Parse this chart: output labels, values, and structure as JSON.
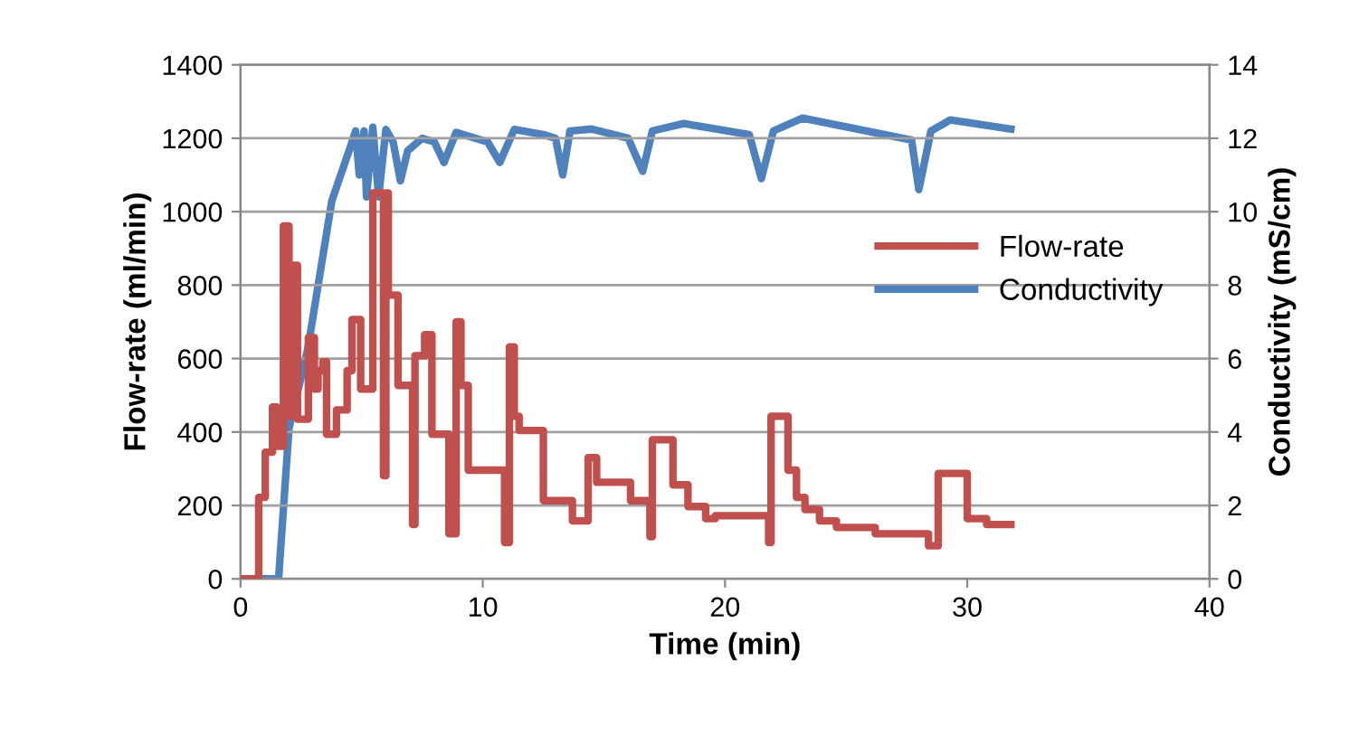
{
  "chart_data": {
    "type": "line",
    "xlabel": "Time (min)",
    "ylabel": "Flow-rate (ml/min)",
    "y2label": "Conductivity (mS/cm)",
    "xlim": [
      0,
      40
    ],
    "xticks": [
      0,
      10,
      20,
      30,
      40
    ],
    "ylim": [
      0,
      1400
    ],
    "yticks": [
      0,
      200,
      400,
      600,
      800,
      1000,
      1200,
      1400
    ],
    "y2lim": [
      0,
      14
    ],
    "y2ticks": [
      0,
      2,
      4,
      6,
      8,
      10,
      12,
      14
    ],
    "grid": "y",
    "legend": "right",
    "marker": "none",
    "line_style": "solid",
    "series": [
      {
        "name": "Flow-rate",
        "color": "#c0504d",
        "type": "step",
        "x": [
          0,
          0.75,
          1.02,
          1.32,
          1.5,
          1.77,
          2.0,
          2.1,
          2.35,
          2.8,
          3.05,
          3.2,
          3.4,
          3.55,
          3.96,
          4.4,
          4.6,
          4.96,
          5.46,
          5.9,
          6.0,
          6.1,
          6.5,
          7.1,
          7.2,
          7.6,
          7.9,
          8.6,
          8.9,
          9.1,
          9.4,
          10.9,
          11.1,
          11.3,
          11.5,
          12.5,
          13.7,
          14.35,
          14.7,
          16.1,
          16.9,
          17.0,
          17.85,
          18.47,
          19.2,
          19.6,
          21.8,
          21.9,
          22.6,
          22.95,
          23.3,
          23.9,
          24.6,
          26.2,
          28.4,
          28.8,
          30.0,
          30.8,
          31.8
        ],
        "values": [
          0,
          222,
          345,
          468,
          361,
          961,
          443,
          854,
          435,
          657,
          517,
          567,
          591,
          394,
          460,
          567,
          706,
          517,
          1051,
          281,
          1051,
          773,
          527,
          148,
          608,
          665,
          394,
          123,
          700,
          527,
          296,
          99,
          632,
          443,
          404,
          213,
          158,
          330,
          263,
          213,
          115,
          379,
          256,
          197,
          164,
          172,
          99,
          443,
          296,
          222,
          189,
          158,
          140,
          123,
          90,
          287,
          164,
          148,
          148
        ]
      },
      {
        "name": "Conductivity",
        "color": "#4f81bd",
        "axis": "y2",
        "x": [
          0,
          1.57,
          2.0,
          2.77,
          3.77,
          4.5,
          4.75,
          4.9,
          5.1,
          5.2,
          5.46,
          5.7,
          6.0,
          6.3,
          6.6,
          6.9,
          7.5,
          8.0,
          8.4,
          8.9,
          10.2,
          10.7,
          11.3,
          12.5,
          13.0,
          13.3,
          13.6,
          14.5,
          16.0,
          16.6,
          17.0,
          18.3,
          21.0,
          21.5,
          22.0,
          23.2,
          27.7,
          28.0,
          28.5,
          29.3,
          31.8
        ],
        "values": [
          0,
          0,
          4.1,
          6.24,
          10.3,
          11.7,
          12.2,
          11.0,
          12.2,
          10.4,
          12.3,
          10.4,
          12.24,
          11.9,
          10.84,
          11.66,
          12.0,
          11.9,
          11.34,
          12.16,
          11.9,
          11.34,
          12.24,
          12.1,
          12.0,
          11.0,
          12.2,
          12.25,
          12.0,
          11.1,
          12.2,
          12.4,
          12.1,
          10.9,
          12.2,
          12.55,
          11.95,
          10.6,
          12.2,
          12.5,
          12.25
        ]
      }
    ]
  }
}
